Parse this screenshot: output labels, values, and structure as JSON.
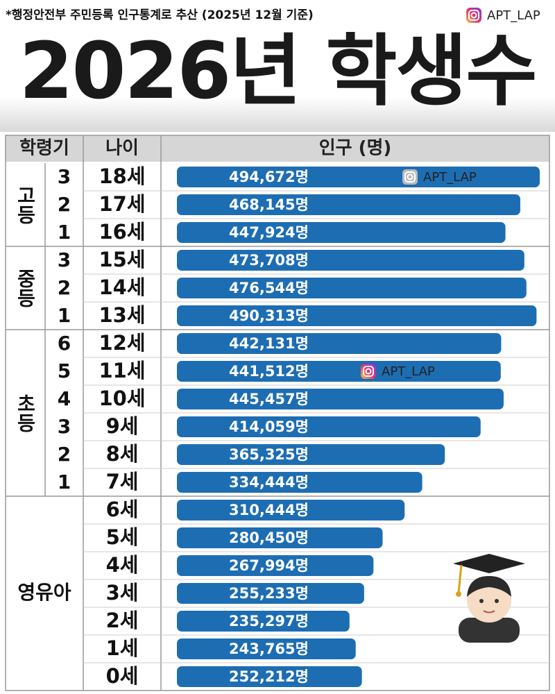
{
  "chart_data": {
    "type": "bar",
    "note": "*행정안전부 주민등록 인구통계로 추산 (2025년 12월 기준)",
    "watermark": "APT_LAP",
    "title": "2026년 학생수",
    "headers": [
      "학령기",
      "나이",
      "인구 (명)"
    ],
    "groups": [
      {
        "label": "고등",
        "grades": [
          "3",
          "2",
          "1"
        ]
      },
      {
        "label": "중등",
        "grades": [
          "3",
          "2",
          "1"
        ]
      },
      {
        "label": "초등",
        "grades": [
          "6",
          "5",
          "4",
          "3",
          "2",
          "1"
        ]
      },
      {
        "label": "영유아",
        "grades": [
          null,
          null,
          null,
          null,
          null,
          null,
          null
        ]
      }
    ],
    "categories": [
      "18세",
      "17세",
      "16세",
      "15세",
      "14세",
      "13세",
      "12세",
      "11세",
      "10세",
      "9세",
      "8세",
      "7세",
      "6세",
      "5세",
      "4세",
      "3세",
      "2세",
      "1세",
      "0세"
    ],
    "values": [
      494672,
      468145,
      447924,
      473708,
      476544,
      490313,
      442131,
      441512,
      445457,
      414059,
      365325,
      334444,
      310444,
      280450,
      267994,
      255233,
      235297,
      243765,
      252212
    ],
    "value_labels": [
      "494,672명",
      "468,145명",
      "447,924명",
      "473,708명",
      "476,544명",
      "490,313명",
      "442,131명",
      "441,512명",
      "445,457명",
      "414,059명",
      "365,325명",
      "334,444명",
      "310,444명",
      "280,450명",
      "267,994명",
      "255,233명",
      "235,297명",
      "243,765명",
      "252,212명"
    ],
    "color": "#1d6db3"
  }
}
